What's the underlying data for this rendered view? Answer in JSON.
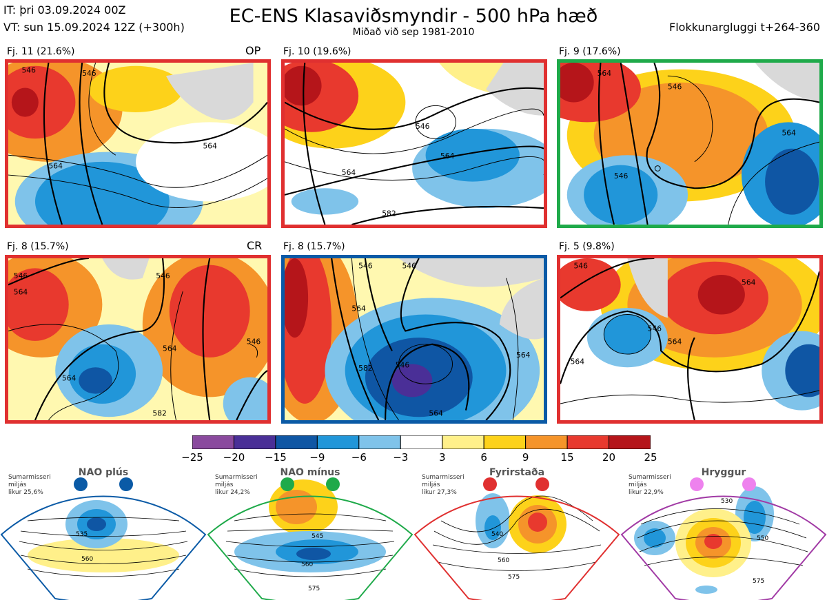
{
  "header": {
    "it_line": "IT: þri 03.09.2024 00Z",
    "vt_line": "VT: sun 15.09.2024 12Z  (+300h)",
    "title": "EC-ENS Klasaviðsmyndir - 500 hPa hæð",
    "subtitle": "Miðað við sep 1981-2010",
    "window": "Flokkunargluggi t+264-360"
  },
  "panels": [
    {
      "label": "Fj. 11 (21.6%)",
      "tag": "OP",
      "border": "#e03030",
      "contours": [
        "546",
        "546",
        "564",
        "564"
      ]
    },
    {
      "label": "Fj. 10 (19.6%)",
      "tag": "",
      "border": "#e03030",
      "contours": [
        "546",
        "564",
        "564",
        "582"
      ]
    },
    {
      "label": "Fj. 9 (17.6%)",
      "tag": "",
      "border": "#1faa4a",
      "contours": [
        "564",
        "546",
        "546",
        "564"
      ]
    },
    {
      "label": "Fj. 8 (15.7%)",
      "tag": "CR",
      "border": "#e03030",
      "contours": [
        "546",
        "564",
        "546",
        "564",
        "564",
        "546",
        "582"
      ]
    },
    {
      "label": "Fj. 8 (15.7%)",
      "tag": "",
      "border": "#0a5aa6",
      "contours": [
        "546",
        "546",
        "564",
        "546",
        "582",
        "564",
        "564"
      ]
    },
    {
      "label": "Fj. 5 (9.8%)",
      "tag": "",
      "border": "#e03030",
      "contours": [
        "546",
        "564",
        "564",
        "546",
        "564"
      ]
    }
  ],
  "colorbar": {
    "ticks": [
      "−25",
      "−20",
      "−15",
      "−9",
      "−6",
      "−3",
      "3",
      "6",
      "9",
      "15",
      "20",
      "25"
    ],
    "colors": [
      "#8a4a9e",
      "#4a2f97",
      "#0f56a4",
      "#2196d9",
      "#7fc3ea",
      "#ffffff",
      "#fff08a",
      "#fdd21a",
      "#f5942a",
      "#e8392e",
      "#b5151a"
    ]
  },
  "patterns": [
    {
      "name": "NAO plús",
      "info": "Sumarmisseri\nmiljás\nlikur 25,6%",
      "color": "#0a5aa6",
      "labels": [
        "535",
        "560"
      ]
    },
    {
      "name": "NAO mínus",
      "info": "Sumarmisseri\nmiljás\nlikur 24,2%",
      "color": "#1faa4a",
      "labels": [
        "545",
        "560",
        "575"
      ]
    },
    {
      "name": "Fyrirstaða",
      "info": "Sumarmisseri\nmiljás\nlikur 27,3%",
      "color": "#e03030",
      "labels": [
        "540",
        "560",
        "575"
      ]
    },
    {
      "name": "Hryggur",
      "info": "Sumarmisseri\nmiljás\nlikur 22,9%",
      "color": "#a13aa5",
      "labels": [
        "530",
        "550",
        "575"
      ]
    }
  ],
  "chart_data": {
    "type": "heatmap",
    "title": "EC-ENS Klasaviðsmyndir - 500 hPa hæð",
    "subtitle": "Miðað við sep 1981-2010",
    "clusters": [
      {
        "label": "Fj. 11 (21.6%)",
        "share": 21.6,
        "tag": "OP",
        "regime": "NAO plús"
      },
      {
        "label": "Fj. 10 (19.6%)",
        "share": 19.6,
        "regime": "NAO plús"
      },
      {
        "label": "Fj. 9 (17.6%)",
        "share": 17.6,
        "regime": "NAO mínus"
      },
      {
        "label": "Fj. 8 (15.7%)",
        "share": 15.7,
        "tag": "CR",
        "regime": "NAO plús"
      },
      {
        "label": "Fj. 8 (15.7%)",
        "share": 15.7,
        "regime": "Fyrirstaða"
      },
      {
        "label": "Fj. 5 (9.8%)",
        "share": 9.8,
        "regime": "NAO plús"
      }
    ],
    "colorbar_levels": [
      -25,
      -20,
      -15,
      -9,
      -6,
      -3,
      3,
      6,
      9,
      15,
      20,
      25
    ],
    "regimes": [
      {
        "name": "NAO plús",
        "likelihood": 25.6
      },
      {
        "name": "NAO mínus",
        "likelihood": 24.2
      },
      {
        "name": "Fyrirstaða",
        "likelihood": 27.3
      },
      {
        "name": "Hryggur",
        "likelihood": 22.9
      }
    ]
  }
}
